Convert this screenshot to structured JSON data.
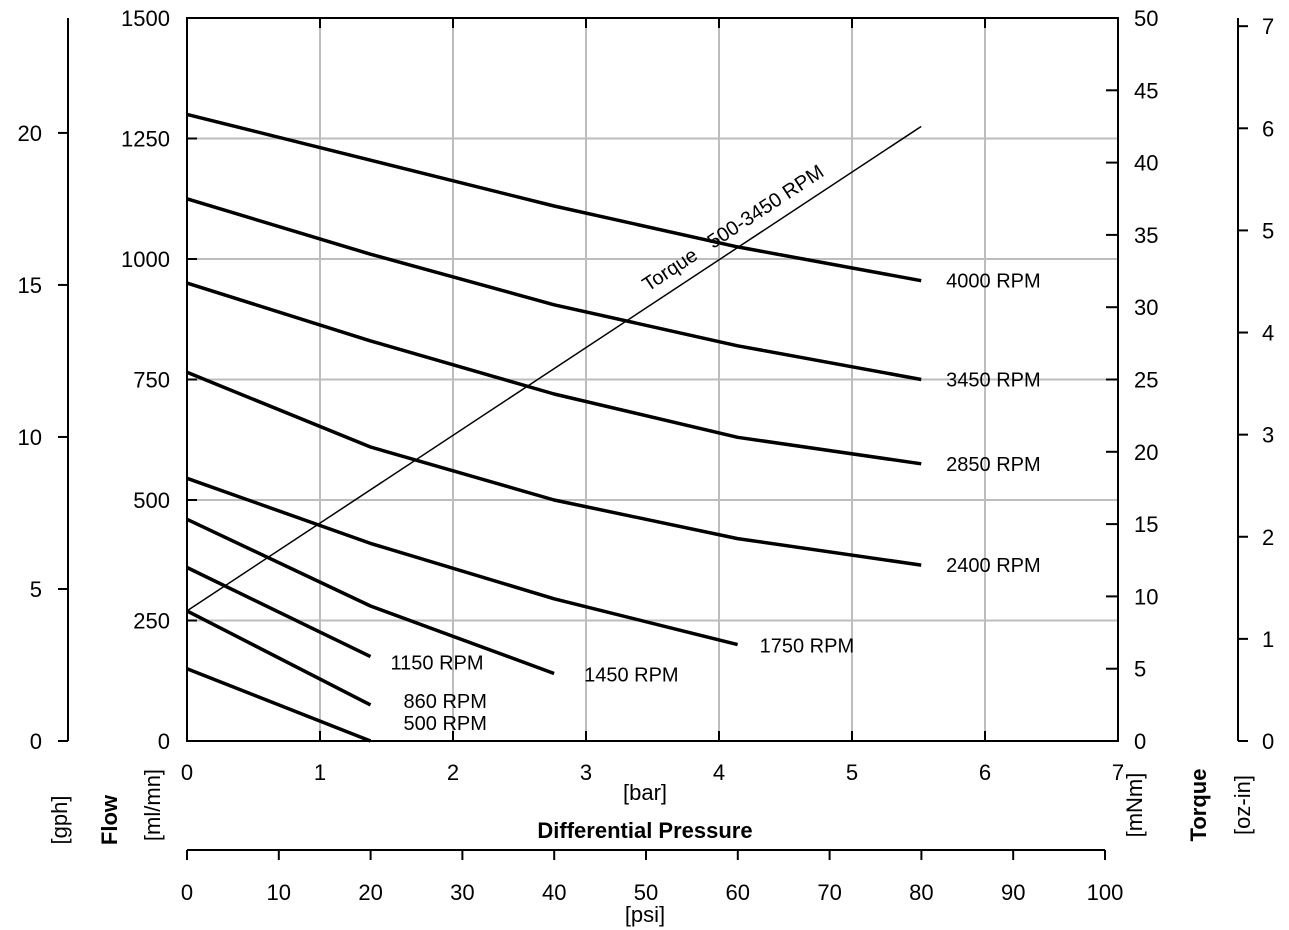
{
  "chart_data": {
    "type": "line",
    "x": {
      "label": "[bar]",
      "title": "Differential Pressure",
      "ticks": [
        "0",
        "1",
        "2",
        "3",
        "4",
        "5",
        "6",
        "7"
      ],
      "range": [
        0,
        7
      ]
    },
    "x2": {
      "label": "[psi]",
      "ticks": [
        "0",
        "10",
        "20",
        "30",
        "40",
        "50",
        "60",
        "70",
        "80",
        "90",
        "100"
      ],
      "range": [
        0,
        100
      ]
    },
    "y_flow_ml": {
      "title": "Flow",
      "unit": "[ml/mn]",
      "ticks": [
        "0",
        "250",
        "500",
        "750",
        "1000",
        "1250",
        "1500"
      ],
      "range": [
        0,
        1500
      ]
    },
    "y_flow_gph": {
      "unit": "[gph]",
      "ticks": [
        "0",
        "5",
        "10",
        "15",
        "20"
      ],
      "range": [
        0,
        23.78
      ]
    },
    "y_torque_mnm": {
      "unit": "[mNm]",
      "ticks": [
        "0",
        "5",
        "10",
        "15",
        "20",
        "25",
        "30",
        "35",
        "40",
        "45",
        "50"
      ],
      "range": [
        0,
        50
      ]
    },
    "y_torque_ozin": {
      "title": "Torque",
      "unit": "[oz-in]",
      "ticks": [
        "0",
        "1",
        "2",
        "3",
        "4",
        "5",
        "6",
        "7"
      ],
      "range": [
        0,
        7.08
      ]
    },
    "series": [
      {
        "name": "4000 RPM",
        "points": [
          [
            0,
            1300
          ],
          [
            1.38,
            1205
          ],
          [
            2.76,
            1110
          ],
          [
            4.14,
            1025
          ],
          [
            5.52,
            955
          ]
        ]
      },
      {
        "name": "3450 RPM",
        "points": [
          [
            0,
            1125
          ],
          [
            1.38,
            1010
          ],
          [
            2.76,
            905
          ],
          [
            4.14,
            820
          ],
          [
            5.52,
            750
          ]
        ]
      },
      {
        "name": "2850 RPM",
        "points": [
          [
            0,
            950
          ],
          [
            1.38,
            830
          ],
          [
            2.76,
            720
          ],
          [
            4.14,
            630
          ],
          [
            5.52,
            575
          ]
        ]
      },
      {
        "name": "2400 RPM",
        "points": [
          [
            0,
            765
          ],
          [
            1.38,
            610
          ],
          [
            2.76,
            500
          ],
          [
            4.14,
            420
          ],
          [
            5.52,
            365
          ]
        ]
      },
      {
        "name": "1750 RPM",
        "points": [
          [
            0,
            545
          ],
          [
            1.38,
            410
          ],
          [
            2.76,
            295
          ],
          [
            4.14,
            200
          ]
        ]
      },
      {
        "name": "1450 RPM",
        "points": [
          [
            0,
            460
          ],
          [
            1.38,
            280
          ],
          [
            2.76,
            140
          ]
        ]
      },
      {
        "name": "1150 RPM",
        "points": [
          [
            0,
            360
          ],
          [
            1.38,
            175
          ]
        ]
      },
      {
        "name": "860 RPM",
        "points": [
          [
            0,
            270
          ],
          [
            1.38,
            75
          ]
        ]
      },
      {
        "name": "500 RPM",
        "points": [
          [
            0,
            150
          ],
          [
            1.38,
            0
          ]
        ]
      }
    ],
    "torque_series": {
      "name": "Torque   500-3450 RPM",
      "points": [
        [
          0,
          9
        ],
        [
          5.52,
          42.5
        ]
      ]
    },
    "grid": true,
    "legend": "none"
  }
}
